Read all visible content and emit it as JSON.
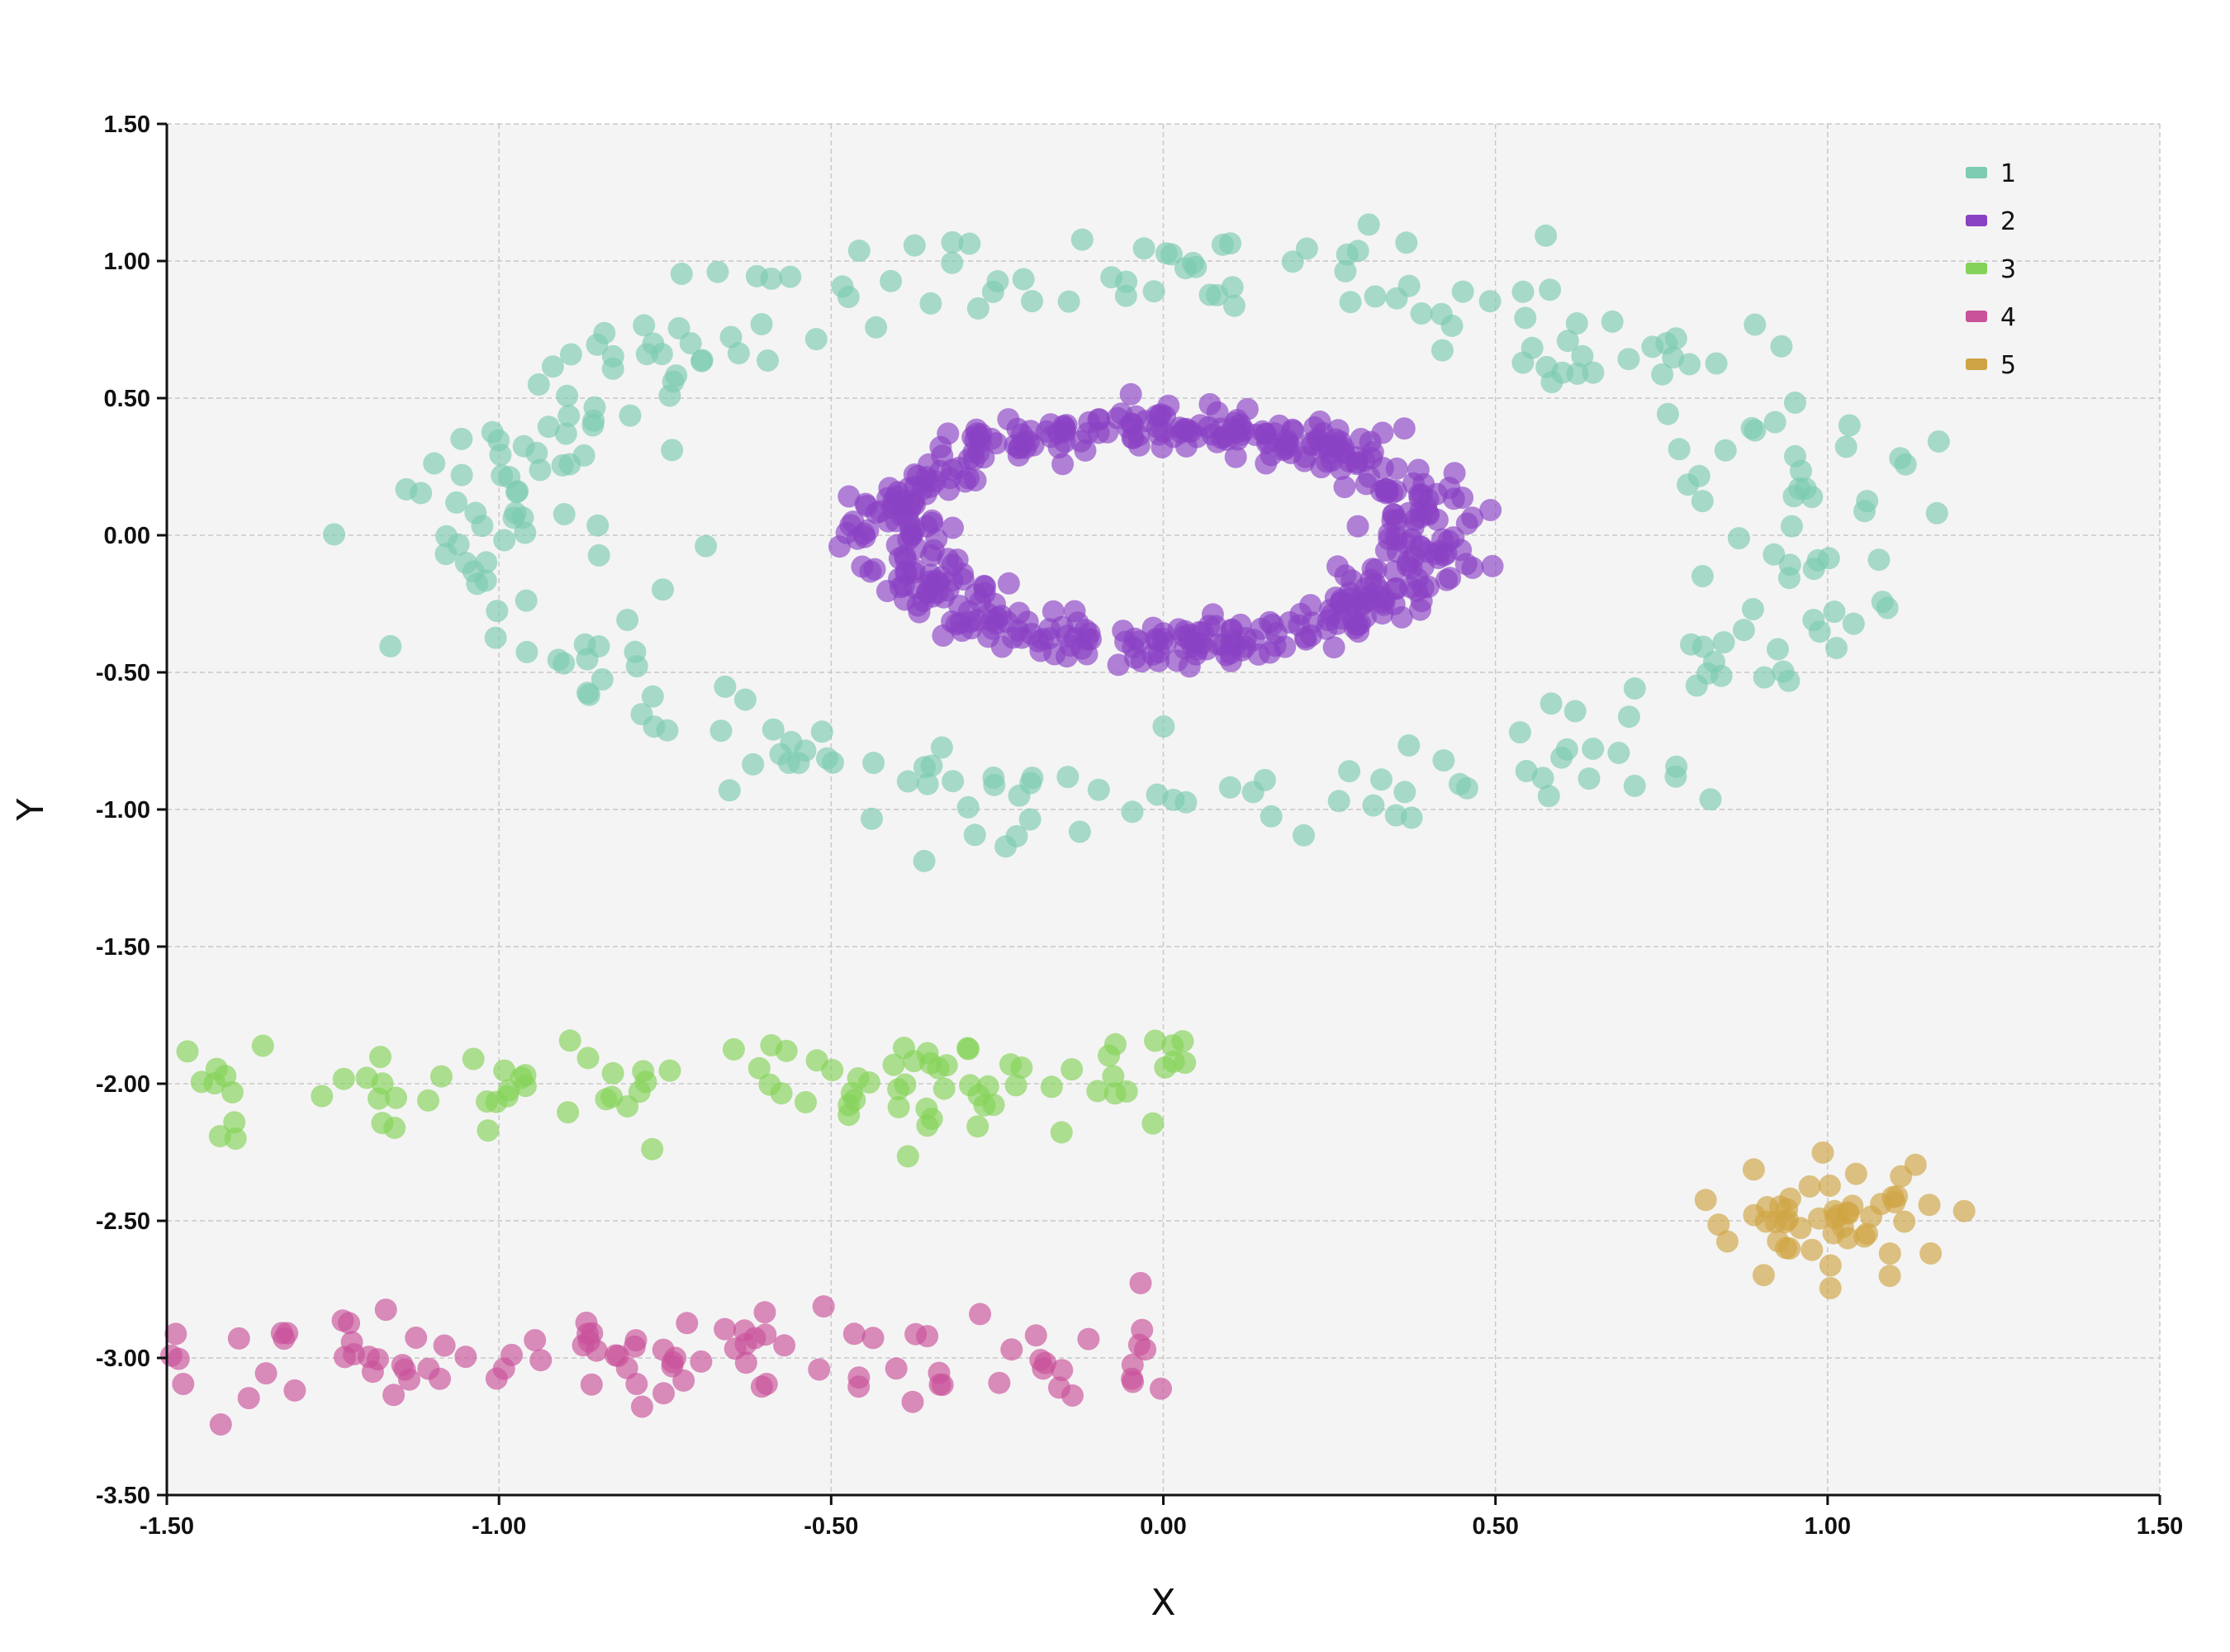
{
  "chart_data": {
    "type": "scatter",
    "title": "",
    "xlabel": "X",
    "ylabel": "Y",
    "xlim": [
      -1.5,
      1.5
    ],
    "ylim": [
      -3.5,
      1.5
    ],
    "x_ticks": [
      -1.5,
      -1.0,
      -0.5,
      0.0,
      0.5,
      1.0,
      1.5
    ],
    "y_ticks": [
      -3.5,
      -3.0,
      -2.5,
      -2.0,
      -1.5,
      -1.0,
      -0.5,
      0.0,
      0.5,
      1.0,
      1.5
    ],
    "x_tick_labels": [
      "-1.50",
      "-1.00",
      "-0.50",
      "0.00",
      "0.50",
      "1.00",
      "1.50"
    ],
    "y_tick_labels": [
      "-3.50",
      "-3.00",
      "-2.50",
      "-2.00",
      "-1.50",
      "-1.00",
      "-0.50",
      "0.00",
      "0.50",
      "1.00",
      "1.50"
    ],
    "grid": true,
    "legend_position": "top-right",
    "marker_opacity": 0.65,
    "series": [
      {
        "name": "1",
        "color": "#7dcbb0",
        "shape": "ring",
        "center": [
          0.0,
          0.0
        ],
        "radius": [
          1.0,
          1.0
        ],
        "noise": 0.1,
        "count": 300
      },
      {
        "name": "2",
        "color": "#8a42c4",
        "shape": "ring",
        "center": [
          0.0,
          0.0
        ],
        "radius": [
          0.4,
          0.4
        ],
        "noise": 0.04,
        "count": 500
      },
      {
        "name": "3",
        "color": "#84d257",
        "shape": "band",
        "x_range": [
          -1.5,
          0.05
        ],
        "y_center": -2.0,
        "noise": 0.1,
        "count": 100
      },
      {
        "name": "4",
        "color": "#c9529a",
        "shape": "band",
        "x_range": [
          -1.5,
          0.0
        ],
        "y_center": -3.0,
        "noise": 0.1,
        "count": 100
      },
      {
        "name": "5",
        "color": "#cfa444",
        "shape": "cluster",
        "center": [
          1.0,
          -2.5
        ],
        "noise": 0.1,
        "count": 50
      }
    ]
  }
}
